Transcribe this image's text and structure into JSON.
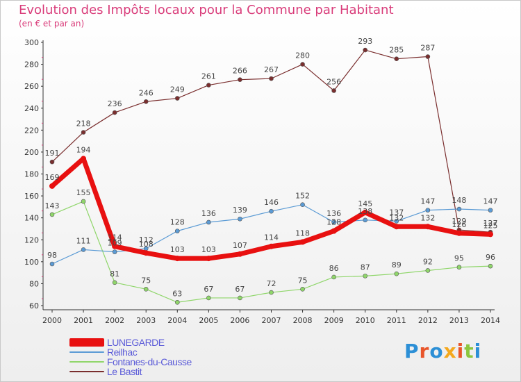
{
  "title": "Evolution des Impôts locaux pour la Commune par Habitant",
  "subtitle": "(en € et par an)",
  "brand": {
    "text": "Proxiti",
    "colors": [
      "#2c8fd6",
      "#e8552a",
      "#2c8fd6",
      "#f4a81d",
      "#e8552a",
      "#8cc63f",
      "#2c8fd6"
    ]
  },
  "chart_data": {
    "type": "line",
    "title": "Evolution des Impôts locaux pour la Commune par Habitant",
    "subtitle": "(en € et par an)",
    "x": [
      "2000",
      "2001",
      "2002",
      "2003",
      "2004",
      "2005",
      "2006",
      "2007",
      "2008",
      "2009",
      "2010",
      "2011",
      "2012",
      "2013",
      "2014"
    ],
    "ylim": [
      60,
      300
    ],
    "yticks": [
      60,
      80,
      100,
      120,
      140,
      160,
      180,
      200,
      220,
      240,
      260,
      280,
      300
    ],
    "grid": false,
    "legend": "bottom-left",
    "series": [
      {
        "name": "LUNEGARDE",
        "color": "#e81010",
        "values": [
          169,
          194,
          114,
          108,
          103,
          103,
          107,
          114,
          118,
          128,
          145,
          132,
          132,
          126,
          125
        ]
      },
      {
        "name": "Reilhac",
        "color": "#5b9bd5",
        "values": [
          98,
          111,
          109,
          112,
          128,
          136,
          139,
          146,
          152,
          136,
          138,
          137,
          147,
          148,
          147
        ]
      },
      {
        "name": "Fontanes-du-Causse",
        "color": "#8fd66a",
        "values": [
          143,
          155,
          81,
          75,
          63,
          67,
          67,
          72,
          75,
          86,
          87,
          89,
          92,
          95,
          96
        ]
      },
      {
        "name": "Le Bastit",
        "color": "#7a2e2e",
        "values": [
          191,
          218,
          236,
          246,
          249,
          261,
          266,
          267,
          280,
          256,
          293,
          285,
          287,
          129,
          127
        ]
      }
    ]
  }
}
